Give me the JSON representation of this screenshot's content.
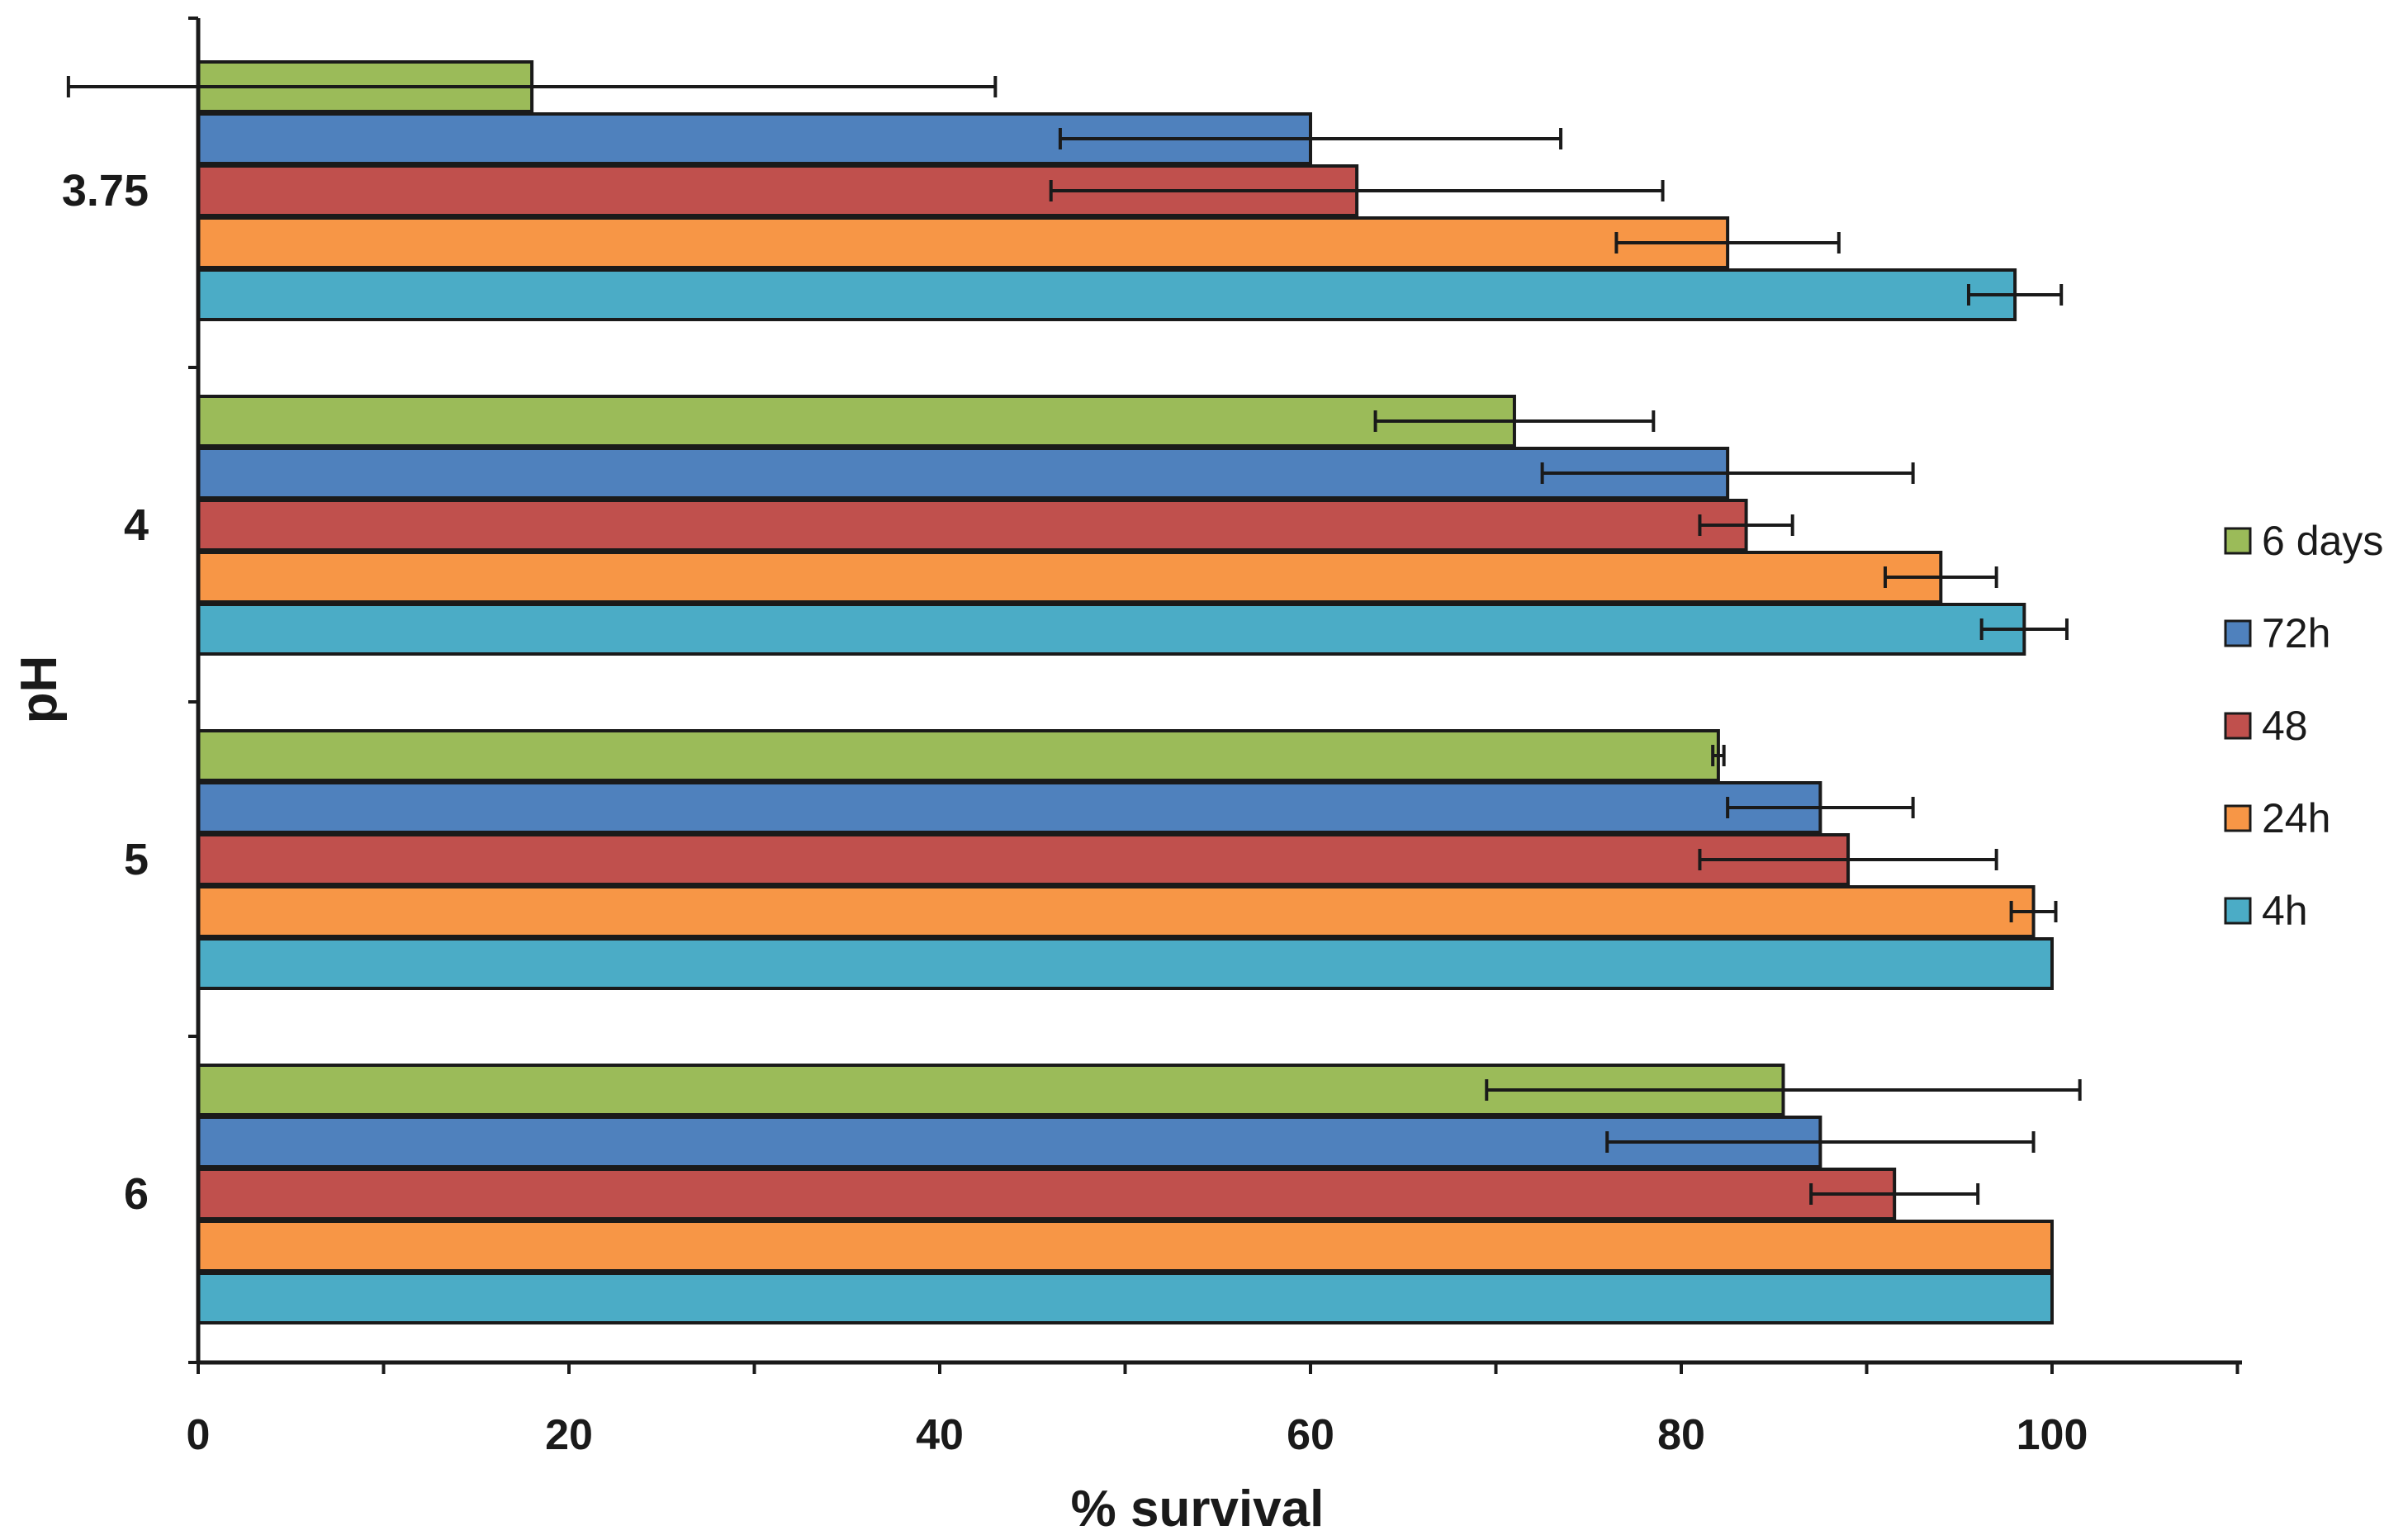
{
  "chart_data": {
    "type": "bar",
    "orientation": "horizontal",
    "title": "",
    "xlabel": "% survival",
    "ylabel": "pH",
    "xlim": [
      0,
      110
    ],
    "xticks": [
      0,
      20,
      40,
      60,
      80,
      100
    ],
    "grid": false,
    "legend_position": "right",
    "categories": [
      "3.75",
      "4",
      "5",
      "6"
    ],
    "series": [
      {
        "name": "6 days",
        "color": "#9bbb59",
        "values": [
          18,
          71,
          82,
          85.5
        ],
        "errors": [
          25,
          7.5,
          0.3,
          16
        ]
      },
      {
        "name": "72h",
        "color": "#4f81bd",
        "values": [
          60,
          82.5,
          87.5,
          87.5
        ],
        "errors": [
          13.5,
          10,
          5,
          11.5
        ]
      },
      {
        "name": "48",
        "color": "#c0504d",
        "values": [
          62.5,
          83.5,
          89,
          91.5
        ],
        "errors": [
          16.5,
          2.5,
          8,
          4.5
        ]
      },
      {
        "name": "24h",
        "color": "#f79646",
        "values": [
          82.5,
          94,
          99,
          100
        ],
        "errors": [
          6,
          3,
          1.2,
          0
        ]
      },
      {
        "name": "4h",
        "color": "#4bacc6",
        "values": [
          98,
          98.5,
          100,
          100
        ],
        "errors": [
          2.5,
          2.3,
          0,
          0
        ]
      }
    ]
  }
}
